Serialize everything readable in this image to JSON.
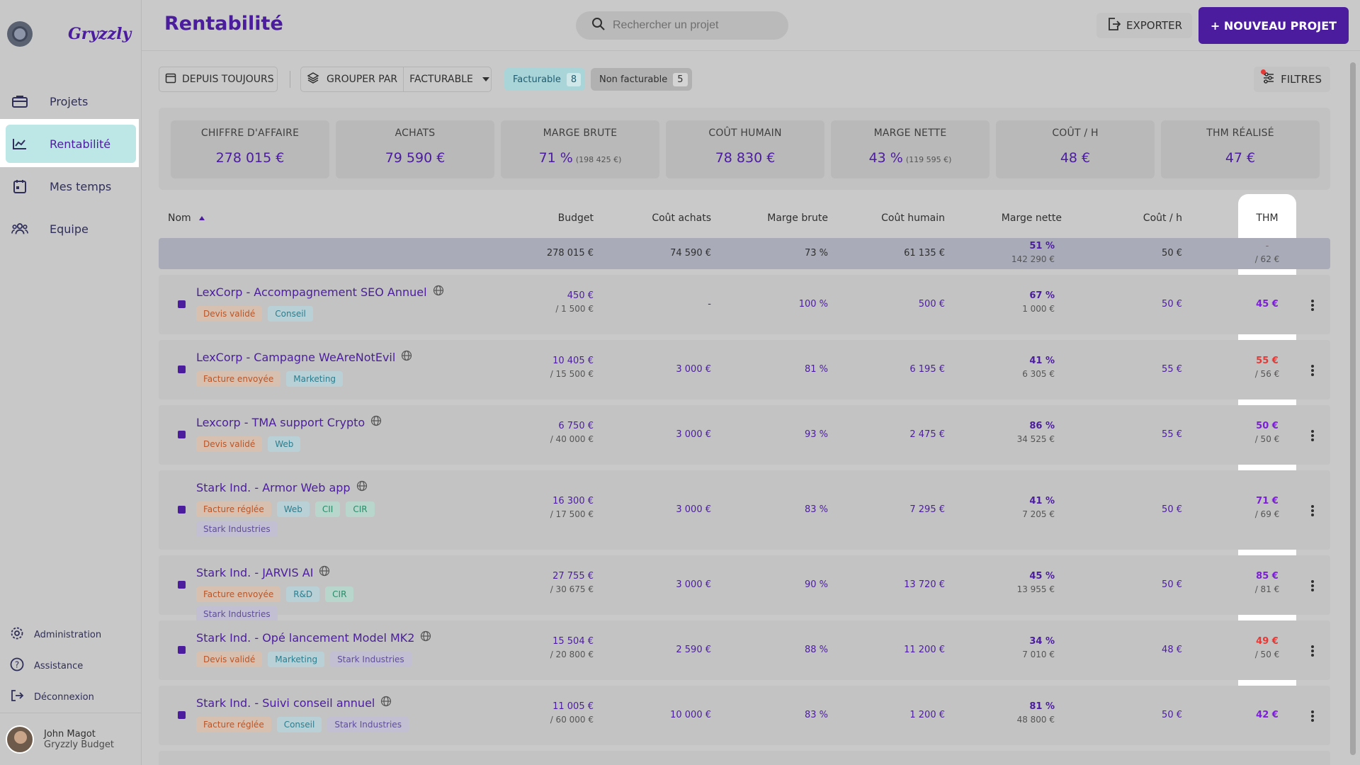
{
  "app": {
    "brand": "Gryzzly",
    "page_title": "Rentabilité"
  },
  "sidebar": {
    "items": [
      {
        "label": "Projets",
        "icon": "briefcase-icon"
      },
      {
        "label": "Rentabilité",
        "icon": "trending-chart-icon",
        "active": true
      },
      {
        "label": "Mes temps",
        "icon": "calendar-icon"
      },
      {
        "label": "Equipe",
        "icon": "team-icon"
      }
    ],
    "bottom": [
      {
        "label": "Administration",
        "icon": "gear-icon"
      },
      {
        "label": "Assistance",
        "icon": "help-icon"
      },
      {
        "label": "Déconnexion",
        "icon": "logout-icon"
      }
    ],
    "user": {
      "name": "John Magot",
      "org": "Gryzzly Budget"
    }
  },
  "header": {
    "search_placeholder": "Rechercher un projet",
    "export_label": "EXPORTER",
    "new_project_label": "+ NOUVEAU PROJET"
  },
  "filters": {
    "period": "DEPUIS TOUJOURS",
    "group_by_label": "GROUPER PAR",
    "group_by_value": "FACTURABLE",
    "facturable": {
      "label": "Facturable",
      "count": "8"
    },
    "non_facturable": {
      "label": "Non facturable",
      "count": "5"
    },
    "filters_label": "FILTRES"
  },
  "kpis": [
    {
      "label": "CHIFFRE D'AFFAIRE",
      "value": "278 015 €",
      "sub": ""
    },
    {
      "label": "ACHATS",
      "value": "79 590 €",
      "sub": ""
    },
    {
      "label": "MARGE BRUTE",
      "value": "71 %",
      "sub": "(198 425 €)"
    },
    {
      "label": "COÛT HUMAIN",
      "value": "78 830 €",
      "sub": ""
    },
    {
      "label": "MARGE NETTE",
      "value": "43 %",
      "sub": "(119 595 €)"
    },
    {
      "label": "COÛT / H",
      "value": "48 €",
      "sub": ""
    },
    {
      "label": "THM RÉALISÉ",
      "value": "47 €",
      "sub": ""
    }
  ],
  "table": {
    "columns": {
      "nom": "Nom",
      "budget": "Budget",
      "cout_achats": "Coût achats",
      "marge_brute": "Marge brute",
      "cout_humain": "Coût humain",
      "marge_nette": "Marge nette",
      "cout_h": "Coût / h",
      "thm": "THM"
    },
    "subtotal": {
      "budget": "278 015 €",
      "cout_achats": "74 590 €",
      "marge_brute": "73 %",
      "cout_humain": "61 135 €",
      "marge_nette": "51 %",
      "marge_nette_sub": "142 290 €",
      "cout_h": "50 €",
      "thm": "-",
      "thm_sub": "/ 62 €"
    },
    "rows": [
      {
        "name": "LexCorp - Accompagnement SEO Annuel",
        "tags": [
          {
            "label": "Devis validé",
            "kind": "orange"
          },
          {
            "label": "Conseil",
            "kind": "teal"
          }
        ],
        "budget": "450 €",
        "budget_sub": "/ 1 500 €",
        "cout_achats": "-",
        "marge_brute": "100 %",
        "cout_humain": "500 €",
        "marge_nette": "67 %",
        "marge_nette_sub": "1 000 €",
        "cout_h": "50 €",
        "thm": "45 €",
        "thm_sub": "",
        "thm_color": "#7b1fd6"
      },
      {
        "name": "LexCorp - Campagne WeAreNotEvil",
        "tags": [
          {
            "label": "Facture envoyée",
            "kind": "orange"
          },
          {
            "label": "Marketing",
            "kind": "teal"
          }
        ],
        "budget": "10 405 €",
        "budget_sub": "/ 15 500 €",
        "cout_achats": "3 000 €",
        "marge_brute": "81 %",
        "cout_humain": "6 195 €",
        "marge_nette": "41 %",
        "marge_nette_sub": "6 305 €",
        "cout_h": "55 €",
        "thm": "55 €",
        "thm_sub": "/ 56 €",
        "thm_color": "#e53935"
      },
      {
        "name": "Lexcorp - TMA support Crypto",
        "tags": [
          {
            "label": "Devis validé",
            "kind": "orange"
          },
          {
            "label": "Web",
            "kind": "teal"
          }
        ],
        "budget": "6 750 €",
        "budget_sub": "/ 40 000 €",
        "cout_achats": "3 000 €",
        "marge_brute": "93 %",
        "cout_humain": "2 475 €",
        "marge_nette": "86 %",
        "marge_nette_sub": "34 525 €",
        "cout_h": "55 €",
        "thm": "50 €",
        "thm_sub": "/ 50 €",
        "thm_color": "#7b1fd6"
      },
      {
        "name": "Stark Ind. - Armor Web app",
        "tags": [
          {
            "label": "Facture réglée",
            "kind": "orange"
          },
          {
            "label": "Web",
            "kind": "teal"
          },
          {
            "label": "CII",
            "kind": "green"
          },
          {
            "label": "CIR",
            "kind": "green"
          },
          {
            "label": "Stark Industries",
            "kind": "purple"
          }
        ],
        "budget": "16 300 €",
        "budget_sub": "/ 17 500 €",
        "cout_achats": "3 000 €",
        "marge_brute": "83 %",
        "cout_humain": "7 295 €",
        "marge_nette": "41 %",
        "marge_nette_sub": "7 205 €",
        "cout_h": "50 €",
        "thm": "71 €",
        "thm_sub": "/ 69 €",
        "thm_color": "#7b1fd6"
      },
      {
        "name": "Stark Ind. - JARVIS AI",
        "tags": [
          {
            "label": "Facture envoyée",
            "kind": "orange"
          },
          {
            "label": "R&D",
            "kind": "teal"
          },
          {
            "label": "CIR",
            "kind": "green"
          },
          {
            "label": "Stark Industries",
            "kind": "purple"
          }
        ],
        "budget": "27 755 €",
        "budget_sub": "/ 30 675 €",
        "cout_achats": "3 000 €",
        "marge_brute": "90 %",
        "cout_humain": "13 720 €",
        "marge_nette": "45 %",
        "marge_nette_sub": "13 955 €",
        "cout_h": "50 €",
        "thm": "85 €",
        "thm_sub": "/ 81 €",
        "thm_color": "#7b1fd6"
      },
      {
        "name": "Stark Ind. - Opé lancement Model MK2",
        "tags": [
          {
            "label": "Devis validé",
            "kind": "orange"
          },
          {
            "label": "Marketing",
            "kind": "teal"
          },
          {
            "label": "Stark Industries",
            "kind": "purple"
          }
        ],
        "budget": "15 504 €",
        "budget_sub": "/ 20 800 €",
        "cout_achats": "2 590 €",
        "marge_brute": "88 %",
        "cout_humain": "11 200 €",
        "marge_nette": "34 %",
        "marge_nette_sub": "7 010 €",
        "cout_h": "48 €",
        "thm": "49 €",
        "thm_sub": "/ 50 €",
        "thm_color": "#e53935"
      },
      {
        "name": "Stark Ind. - Suivi conseil annuel",
        "tags": [
          {
            "label": "Facture réglée",
            "kind": "orange"
          },
          {
            "label": "Conseil",
            "kind": "teal"
          },
          {
            "label": "Stark Industries",
            "kind": "purple"
          }
        ],
        "budget": "11 005 €",
        "budget_sub": "/ 60 000 €",
        "cout_achats": "10 000 €",
        "marge_brute": "83 %",
        "cout_humain": "1 200 €",
        "marge_nette": "81 %",
        "marge_nette_sub": "48 800 €",
        "cout_h": "50 €",
        "thm": "42 €",
        "thm_sub": "",
        "thm_color": "#7b1fd6"
      }
    ]
  }
}
